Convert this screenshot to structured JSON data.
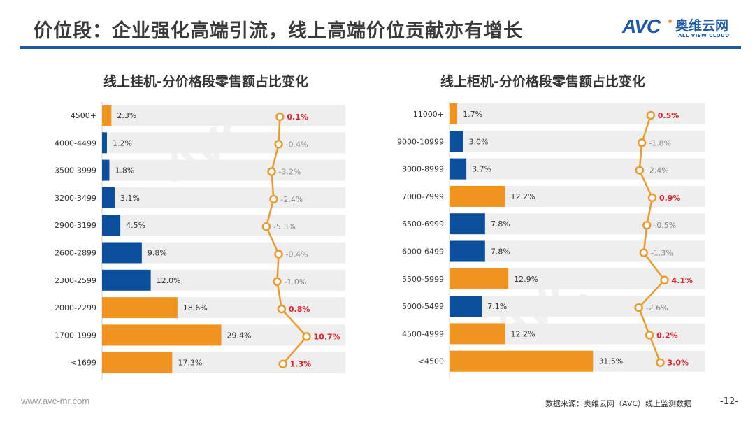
{
  "header": {
    "title": "价位段：企业强化高端引流，线上高端价位贡献亦有增长",
    "logo_text": "AVC",
    "logo_cn": "奥维云网",
    "logo_en": "ALL VIEW CLOUD"
  },
  "colors": {
    "orange": "#f0941f",
    "blue": "#0b4f9c",
    "track": "#eeeeee",
    "line": "#eb9b2e",
    "positive_label": "#e0202a",
    "negative_label": "#888888",
    "rule": "#1f5a9e"
  },
  "chart_data": [
    {
      "type": "bar",
      "title": "线上挂机-分价格段零售额占比变化",
      "categories": [
        "4500+",
        "4000-4499",
        "3500-3999",
        "3200-3499",
        "2900-3199",
        "2600-2899",
        "2300-2599",
        "2000-2299",
        "1700-1999",
        "<1699"
      ],
      "series": [
        {
          "name": "零售额占比",
          "values": [
            2.3,
            1.2,
            1.8,
            3.1,
            4.5,
            9.8,
            12.0,
            18.6,
            29.4,
            17.3
          ],
          "labels": [
            "2.3%",
            "1.2%",
            "1.8%",
            "3.1%",
            "4.5%",
            "9.8%",
            "12.0%",
            "18.6%",
            "29.4%",
            "17.3%"
          ],
          "highlight": [
            true,
            false,
            false,
            false,
            false,
            false,
            false,
            true,
            true,
            true
          ]
        },
        {
          "name": "占比变化",
          "type": "line",
          "values": [
            0.1,
            -0.4,
            -3.2,
            -2.4,
            -5.3,
            -0.4,
            -1.0,
            0.8,
            10.7,
            1.3
          ],
          "labels": [
            "0.1%",
            "-0.4%",
            "-3.2%",
            "-2.4%",
            "-5.3%",
            "-0.4%",
            "-1.0%",
            "0.8%",
            "10.7%",
            "1.3%"
          ]
        }
      ],
      "xlim": [
        0,
        60
      ],
      "change_range": [
        -6,
        11
      ]
    },
    {
      "type": "bar",
      "title": "线上柜机-分价格段零售额占比变化",
      "categories": [
        "11000+",
        "9000-10999",
        "8000-8999",
        "7000-7999",
        "6500-6999",
        "6000-6499",
        "5500-5999",
        "5000-5499",
        "4500-4999",
        "<4500"
      ],
      "series": [
        {
          "name": "零售额占比",
          "values": [
            1.7,
            3.0,
            3.7,
            12.2,
            7.8,
            7.8,
            12.9,
            7.1,
            12.2,
            31.5
          ],
          "labels": [
            "1.7%",
            "3.0%",
            "3.7%",
            "12.2%",
            "7.8%",
            "7.8%",
            "12.9%",
            "7.1%",
            "12.2%",
            "31.5%"
          ],
          "highlight": [
            true,
            false,
            false,
            true,
            false,
            false,
            true,
            false,
            true,
            true
          ]
        },
        {
          "name": "占比变化",
          "type": "line",
          "values": [
            0.5,
            -1.8,
            -2.4,
            0.9,
            -0.5,
            -1.3,
            4.1,
            -2.6,
            0.2,
            3.0
          ],
          "labels": [
            "0.5%",
            "-1.8%",
            "-2.4%",
            "0.9%",
            "-0.5%",
            "-1.3%",
            "4.1%",
            "-2.6%",
            "0.2%",
            "3.0%"
          ]
        }
      ],
      "xlim": [
        0,
        56
      ],
      "change_range": [
        -6,
        11
      ]
    }
  ],
  "footer": {
    "url": "www.avc-mr.com",
    "source": "数据来源：奥维云网（AVC）线上监测数据",
    "page": "-12-"
  }
}
